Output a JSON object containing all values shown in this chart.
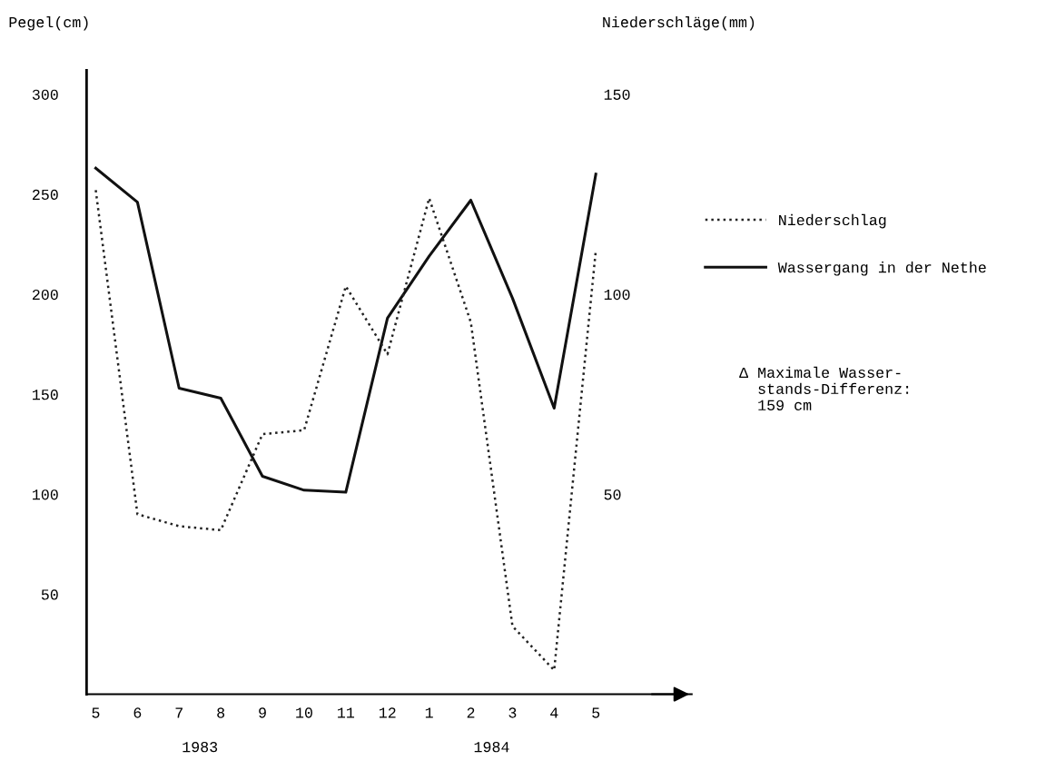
{
  "chart_data": {
    "type": "line",
    "ylabel": "Pegel(cm)",
    "y2label": "Niederschläge(mm)",
    "categories": [
      "5",
      "6",
      "7",
      "8",
      "9",
      "10",
      "11",
      "12",
      "1",
      "2",
      "3",
      "4",
      "5"
    ],
    "series": [
      {
        "name": "Niederschlag",
        "color": "#222222",
        "axis": "y2",
        "line_style": "dotted",
        "values": [
          126,
          45,
          42,
          41,
          65,
          66,
          102,
          85,
          124,
          93,
          17,
          6,
          111
        ]
      },
      {
        "name": "Wassergang in der Nethe",
        "color": "#111111",
        "line_style": "solid",
        "values": [
          263,
          246,
          153,
          148,
          109,
          102,
          101,
          188,
          219,
          247,
          198,
          143,
          260
        ]
      }
    ],
    "ylim": [
      0,
      312
    ],
    "yticks": [
      50,
      100,
      150,
      200,
      250,
      300
    ],
    "y2lim": [
      0,
      156
    ],
    "y2ticks": [
      50,
      100,
      150
    ],
    "legend": "right",
    "grid": false,
    "marker": "none",
    "annotations": [
      "1983",
      "1984",
      "Δ Maximale Wasser-\n  stands-Differenz:\n  159 cm"
    ]
  }
}
